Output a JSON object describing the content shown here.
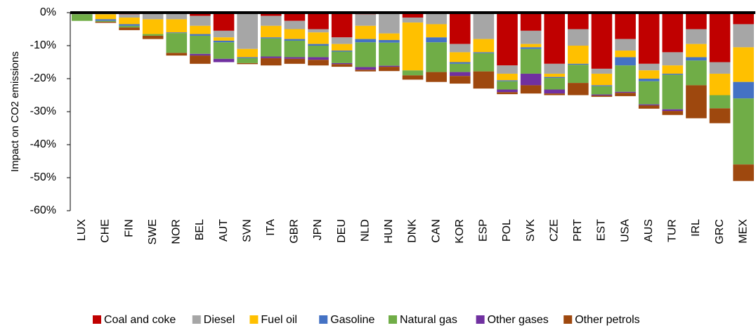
{
  "chart_data": {
    "type": "stacked-bar",
    "y_label": "Impact on CO2 emissions",
    "categories": [
      "LUX",
      "CHE",
      "FIN",
      "SWE",
      "NOR",
      "BEL",
      "AUT",
      "SVN",
      "ITA",
      "GBR",
      "JPN",
      "DEU",
      "NLD",
      "HUN",
      "DNK",
      "CAN",
      "KOR",
      "ESP",
      "POL",
      "SVK",
      "CZE",
      "PRT",
      "EST",
      "USA",
      "AUS",
      "TUR",
      "IRL",
      "GRC",
      "MEX"
    ],
    "series": [
      {
        "name": "Coal and coke",
        "color": "#c00000",
        "values": [
          0,
          0,
          -0.5,
          0,
          0,
          -1,
          -5.5,
          0,
          -1,
          -2.5,
          -5,
          -7.5,
          -0.5,
          -0.3,
          -1.5,
          0,
          -9.5,
          0,
          -16,
          -5.5,
          -15.5,
          -5,
          -17,
          -8,
          -15.5,
          -12,
          -5,
          -15,
          -3.5
        ]
      },
      {
        "name": "Diesel",
        "color": "#a6a6a6",
        "values": [
          -0.5,
          -0.5,
          -1,
          -2,
          -2,
          -3,
          -2,
          -11,
          -3,
          -2.5,
          -1,
          -2,
          -3.5,
          -6,
          -1.5,
          -3.5,
          -2.5,
          -8,
          -2.5,
          -4,
          -3,
          -5,
          -1.5,
          -3.5,
          -2,
          -4,
          -4.5,
          -3.5,
          -7
        ]
      },
      {
        "name": "Fuel oil",
        "color": "#ffc000",
        "values": [
          0,
          -1.5,
          -2,
          -4.5,
          -4,
          -2.5,
          -1,
          -2.5,
          -3.5,
          -3,
          -3.5,
          -2,
          -4,
          -2,
          -14.5,
          -4,
          -3,
          -4,
          -2,
          -1,
          -1,
          -5.5,
          -3.5,
          -2,
          -2.5,
          -2.5,
          -4,
          -6.5,
          -10.5
        ]
      },
      {
        "name": "Gasoline",
        "color": "#4472c4",
        "values": [
          0,
          -0.5,
          -0.5,
          0,
          -0.2,
          -0.5,
          -0.5,
          -0.3,
          -0.3,
          -0.5,
          -0.5,
          -0.3,
          -1,
          -0.8,
          0,
          -1.5,
          -0.5,
          -0.3,
          -0.3,
          -0.5,
          -0.3,
          -0.3,
          -0.3,
          -2.5,
          -0.8,
          -0.3,
          -1,
          0,
          -5
        ]
      },
      {
        "name": "Natural gas",
        "color": "#70ad47",
        "values": [
          -2,
          -0.3,
          -0.5,
          -0.5,
          -6,
          -5.5,
          -5,
          -1.5,
          -5.5,
          -5,
          -3.5,
          -3.5,
          -7.5,
          -7,
          -1.5,
          -9,
          -2.5,
          -5.5,
          -2.5,
          -7.5,
          -3.5,
          -5.5,
          -2.5,
          -8,
          -7,
          -10.5,
          -7.5,
          -4,
          -20
        ]
      },
      {
        "name": "Other gases",
        "color": "#7030a0",
        "values": [
          0,
          0,
          0,
          0,
          0,
          -0.5,
          -1,
          0,
          -0.5,
          -0.5,
          -0.8,
          -0.3,
          -0.8,
          -0.3,
          0,
          0,
          -1.2,
          0,
          -0.8,
          -3.5,
          -1.2,
          0,
          -0.3,
          -0.3,
          -0.3,
          -0.5,
          0,
          0,
          0
        ]
      },
      {
        "name": "Other petrols",
        "color": "#9e480e",
        "values": [
          0,
          -0.3,
          -0.8,
          -1,
          -0.8,
          -2.5,
          0,
          -0.3,
          -2.2,
          -1.5,
          -1.7,
          -0.8,
          -0.5,
          -1.3,
          -1.3,
          -3,
          -2.3,
          -5.2,
          -0.6,
          -2.5,
          -0.5,
          -3.7,
          -0.4,
          -1,
          -1,
          -1.2,
          -10,
          -4.5,
          -5
        ]
      }
    ],
    "ylim": [
      -60,
      0
    ],
    "yticks": [
      {
        "value": 0,
        "label": "0%"
      },
      {
        "value": -10,
        "label": "-10%"
      },
      {
        "value": -20,
        "label": "-20%"
      },
      {
        "value": -30,
        "label": "-30%"
      },
      {
        "value": -40,
        "label": "-40%"
      },
      {
        "value": -50,
        "label": "-50%"
      },
      {
        "value": -60,
        "label": "-60%"
      }
    ]
  }
}
